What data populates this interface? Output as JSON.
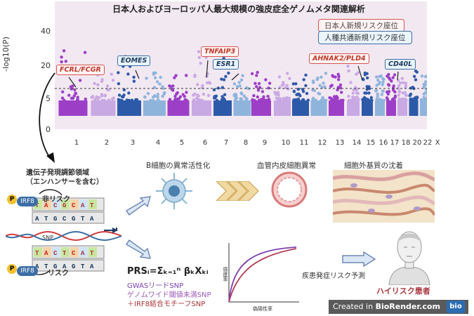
{
  "plot": {
    "title": "日本人およびヨーロッパ人最大規模の強皮症全ゲノムメタ関連解析",
    "ylabel": "-log10(P)",
    "yticks": [
      "40",
      "20",
      "5",
      "0"
    ],
    "chromosomes": [
      "1",
      "2",
      "3",
      "4",
      "5",
      "6",
      "7",
      "8",
      "9",
      "10",
      "11",
      "12",
      "13",
      "14",
      "15",
      "16",
      "17",
      "18",
      "20",
      "22",
      "X"
    ],
    "legend_jp": "日本人新規リスク座位",
    "legend_common": "人種共通新規リスク座位",
    "threshold_style": "dashed",
    "colors": {
      "purple": "#9c3fc6",
      "lavender": "#c9a9e3",
      "blue": "#2d5aa8",
      "lightblue": "#8fb4dc",
      "jp_border": "#d9534f",
      "common_border": "#3b6ea5"
    }
  },
  "loci": [
    {
      "label": "FCRL/FCGR",
      "group": "jp"
    },
    {
      "label": "EOMES",
      "group": "common"
    },
    {
      "label": "TNFAIP3",
      "group": "jp"
    },
    {
      "label": "ESR1",
      "group": "common"
    },
    {
      "label": "AHNAK2/PLD4",
      "group": "jp"
    },
    {
      "label": "CD40L",
      "group": "common"
    }
  ],
  "enhancer": {
    "title": "遺伝子発現調節領域",
    "subtitle": "（エンハンサーを含む）",
    "tf": "IRF8",
    "p_label": "P",
    "non_risk": "非リスク",
    "risk": "リスク",
    "snp": "SNP"
  },
  "pathway": {
    "b_cell": "B細胞の異常活性化",
    "endothelial": "血管内皮細胞異常",
    "ecm": "細胞外基質の沈着"
  },
  "prs": {
    "formula": "PRSᵢ=Σₖ₌₁ⁿ βₖXₖᵢ",
    "items": [
      {
        "text": "GWASリードSNP",
        "color": "#7b3fb0"
      },
      {
        "text": "ゲノムワイド閾値未満SNP",
        "color": "#9b59b6"
      },
      {
        "text": "＋IRF8結合モチーフSNP",
        "color": "#a8323a"
      }
    ],
    "roc_y": "感度率",
    "roc_x": "偽陽性率"
  },
  "outcome": {
    "prediction": "疾患発症リスク予測",
    "patient": "ハイリスク患者"
  },
  "footer": {
    "created_prefix": "Created in ",
    "created_brand": "BioRender.com",
    "badge": "bio"
  }
}
